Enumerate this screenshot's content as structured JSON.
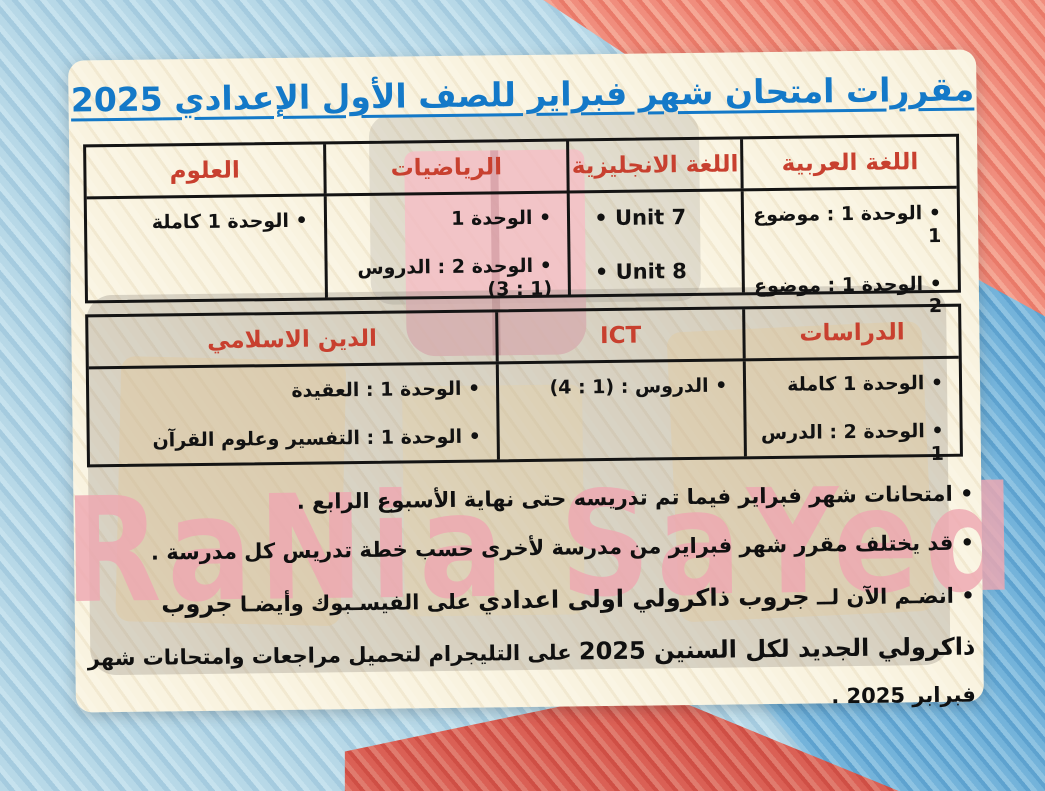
{
  "page": {
    "title": "مقررات امتحان شهر فبراير للصف الأول الإعدادي 2025"
  },
  "colors": {
    "title_blue": "#1479c8",
    "header_red": "#c8402f",
    "paper_cream": "#f8f2dd",
    "watermark_pink": "#eea7b1",
    "bg_light_blue": "#aed3e4",
    "bg_salmon": "#ef8777",
    "bg_blue": "#66abd6",
    "bg_red": "#d6554b"
  },
  "table1": {
    "columns": [
      {
        "header": "اللغة العربية",
        "items": [
          "• الوحدة 1 : موضوع 1",
          "• الوحدة 1 : موضوع 2"
        ]
      },
      {
        "header": "اللغة الانجليزية",
        "items": [
          "• Unit 7",
          "• Unit 8"
        ]
      },
      {
        "header": "الرياضيات",
        "items": [
          "• الوحدة 1",
          "• الوحدة 2 : الدروس (1 : 3)"
        ]
      },
      {
        "header": "العلوم",
        "items": [
          "• الوحدة 1 كاملة"
        ]
      }
    ]
  },
  "table2": {
    "columns": [
      {
        "header": "الدراسات",
        "items": [
          "• الوحدة 1 كاملة",
          "• الوحدة 2 : الدرس 1"
        ]
      },
      {
        "header": "ICT",
        "items": [
          "• الدروس : (1 : 4)"
        ]
      },
      {
        "header": "الدين الاسلامي",
        "items": [
          "• الوحدة 1 : العقيدة",
          "• الوحدة 1 : التفسير وعلوم القرآن"
        ]
      }
    ]
  },
  "notes": {
    "note1": "• امتحانات شهر فبراير فيما تم تدريسه حتى نهاية الأسبوع الرابع .",
    "note2": "• قد يختلف مقرر شهر فبراير من مدرسة لأخرى حسب خطة تدريس كل مدرسة .",
    "note3": {
      "seg1": "• انضـم الآن لــ ",
      "seg2": "جروب ذاكرولي اولى اعدادي",
      "seg3": " على الفيسـبوك وأيضـا ",
      "seg4": "جروب ذاكرولي الجديد لكل السنين 2025",
      "seg5": " على التليجرام لتحميل مراجعات وامتحانات شهر فبرابر 2025 ."
    }
  },
  "watermark": {
    "text": "RaNia SaYed"
  }
}
